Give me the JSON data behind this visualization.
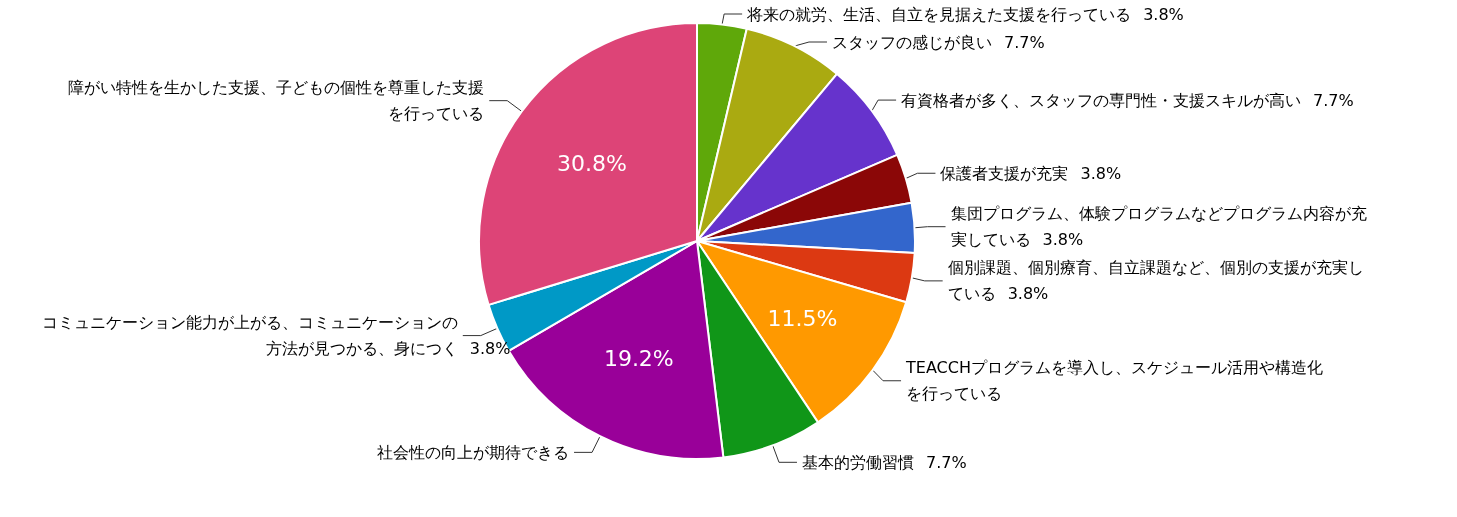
{
  "chart_data": {
    "type": "pie",
    "categories": [
      "将来の就労、生活、自立を見据えた支援を行っている",
      "スタッフの感じが良い",
      "有資格者が多く、スタッフの専門性・支援スキルが高い",
      "保護者支援が充実",
      "集団プログラム、体験プログラムなどプログラム内容が充実している",
      "個別課題、個別療育、自立課題など、個別の支援が充実している",
      "TEACCHプログラムを導入し、スケジュール活用や構造化を行っている",
      "基本的労働習慣",
      "社会性の向上が期待できる",
      "コミュニケーション能力が上がる、コミュニケーションの方法が見つかる、身につく",
      "障がい特性を生かした支援、子どもの個性を尊重した支援を行っている"
    ],
    "values": [
      3.8,
      7.7,
      7.7,
      3.8,
      3.8,
      3.8,
      11.5,
      7.7,
      19.2,
      3.8,
      30.8
    ],
    "value_labels": [
      "3.8%",
      "7.7%",
      "7.7%",
      "3.8%",
      "3.8%",
      "3.8%",
      "11.5%",
      "7.7%",
      "19.2%",
      "3.8%",
      "30.8%"
    ],
    "colors": [
      "#5fa80a",
      "#aaaa11",
      "#6633cc",
      "#8b0707",
      "#3366cc",
      "#dc3912",
      "#ff9900",
      "#109618",
      "#990099",
      "#0099c6",
      "#dd4477"
    ],
    "legend": false
  }
}
